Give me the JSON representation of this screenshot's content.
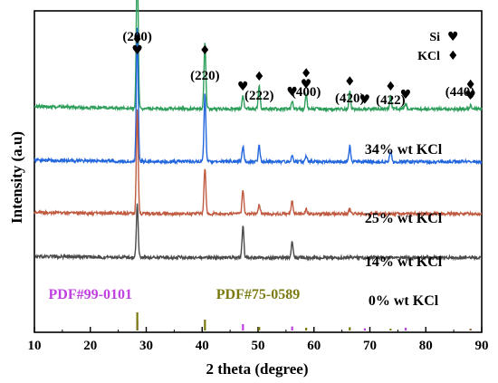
{
  "chart_data": {
    "type": "line",
    "xlabel": "2 theta (degree)",
    "ylabel": "Intensity (a.u)",
    "xlim": [
      10,
      90
    ],
    "xticks": [
      10,
      20,
      30,
      40,
      50,
      60,
      70,
      80,
      90
    ],
    "y_ticks_shown": false,
    "grid": false,
    "series": [
      {
        "name": "34% wt KCl",
        "color": "#2e9e5b",
        "offset": 3.0,
        "base": 0.15,
        "peaks": [
          {
            "x": 28.4,
            "h": 3.0
          },
          {
            "x": 40.5,
            "h": 1.3
          },
          {
            "x": 47.3,
            "h": 0.25
          },
          {
            "x": 50.2,
            "h": 0.45
          },
          {
            "x": 56.1,
            "h": 0.15
          },
          {
            "x": 58.6,
            "h": 0.3
          },
          {
            "x": 66.4,
            "h": 0.35
          },
          {
            "x": 73.7,
            "h": 0.25
          },
          {
            "x": 76.4,
            "h": 0.1
          },
          {
            "x": 88.0,
            "h": 0.08
          }
        ]
      },
      {
        "name": "25% wt KCl",
        "color": "#2266dd",
        "offset": 2.05,
        "base": 0.08,
        "peaks": [
          {
            "x": 28.4,
            "h": 2.6
          },
          {
            "x": 40.5,
            "h": 1.3
          },
          {
            "x": 47.3,
            "h": 0.3
          },
          {
            "x": 50.2,
            "h": 0.3
          },
          {
            "x": 56.1,
            "h": 0.15
          },
          {
            "x": 58.6,
            "h": 0.12
          },
          {
            "x": 66.4,
            "h": 0.3
          },
          {
            "x": 73.7,
            "h": 0.2
          }
        ]
      },
      {
        "name": "14% wt KCl",
        "color": "#c05a40",
        "offset": 1.05,
        "base": 0.07,
        "peaks": [
          {
            "x": 28.4,
            "h": 2.0
          },
          {
            "x": 40.5,
            "h": 0.9
          },
          {
            "x": 47.3,
            "h": 0.45
          },
          {
            "x": 50.2,
            "h": 0.2
          },
          {
            "x": 56.1,
            "h": 0.25
          },
          {
            "x": 58.6,
            "h": 0.1
          },
          {
            "x": 66.4,
            "h": 0.1
          }
        ]
      },
      {
        "name": "0% wt KCl",
        "color": "#4a4a4a",
        "offset": 0.2,
        "base": 0.07,
        "peaks": [
          {
            "x": 28.4,
            "h": 1.05
          },
          {
            "x": 47.3,
            "h": 0.6
          },
          {
            "x": 56.1,
            "h": 0.3
          }
        ]
      }
    ],
    "peak_labels": [
      {
        "text": "(200)",
        "x": 28.4
      },
      {
        "text": "(220)",
        "x": 40.5
      },
      {
        "text": "(222)",
        "x": 50.2
      },
      {
        "text": "(400)",
        "x": 58.6
      },
      {
        "text": "(420)",
        "x": 66.4
      },
      {
        "text": "(422)",
        "x": 73.7
      },
      {
        "text": "(440)",
        "x": 88.0
      }
    ],
    "markers": [
      {
        "x": 28.4,
        "symbols": [
          "diamond",
          "heart"
        ]
      },
      {
        "x": 40.5,
        "symbols": [
          "diamond"
        ]
      },
      {
        "x": 47.3,
        "symbols": [
          "heart"
        ]
      },
      {
        "x": 50.2,
        "symbols": [
          "diamond"
        ]
      },
      {
        "x": 56.1,
        "symbols": [
          "heart"
        ]
      },
      {
        "x": 58.6,
        "symbols": [
          "diamond",
          "heart"
        ]
      },
      {
        "x": 66.4,
        "symbols": [
          "diamond"
        ]
      },
      {
        "x": 69.1,
        "symbols": [
          "heart"
        ]
      },
      {
        "x": 73.7,
        "symbols": [
          "diamond"
        ]
      },
      {
        "x": 76.4,
        "symbols": [
          "heart"
        ]
      },
      {
        "x": 88.0,
        "symbols": [
          "diamond",
          "heart"
        ]
      }
    ],
    "legend": {
      "placement": "top-right",
      "entries": [
        {
          "label": "Si",
          "symbol": "heart"
        },
        {
          "label": "KCl",
          "symbol": "diamond"
        }
      ]
    },
    "references": [
      {
        "label": "PDF#99-0101",
        "color": "#c040e0",
        "lines": [
          {
            "x": 28.4,
            "h": 0.55
          },
          {
            "x": 47.3,
            "h": 0.35
          },
          {
            "x": 56.1,
            "h": 0.22
          },
          {
            "x": 69.1,
            "h": 0.12
          },
          {
            "x": 76.4,
            "h": 0.15
          },
          {
            "x": 88.0,
            "h": 0.1
          }
        ]
      },
      {
        "label": "PDF#75-0589",
        "color": "#7a7a10",
        "lines": [
          {
            "x": 28.4,
            "h": 1.0
          },
          {
            "x": 40.5,
            "h": 0.6
          },
          {
            "x": 50.2,
            "h": 0.2
          },
          {
            "x": 58.6,
            "h": 0.15
          },
          {
            "x": 66.4,
            "h": 0.18
          },
          {
            "x": 73.7,
            "h": 0.1
          },
          {
            "x": 88.0,
            "h": 0.08
          }
        ]
      }
    ]
  }
}
